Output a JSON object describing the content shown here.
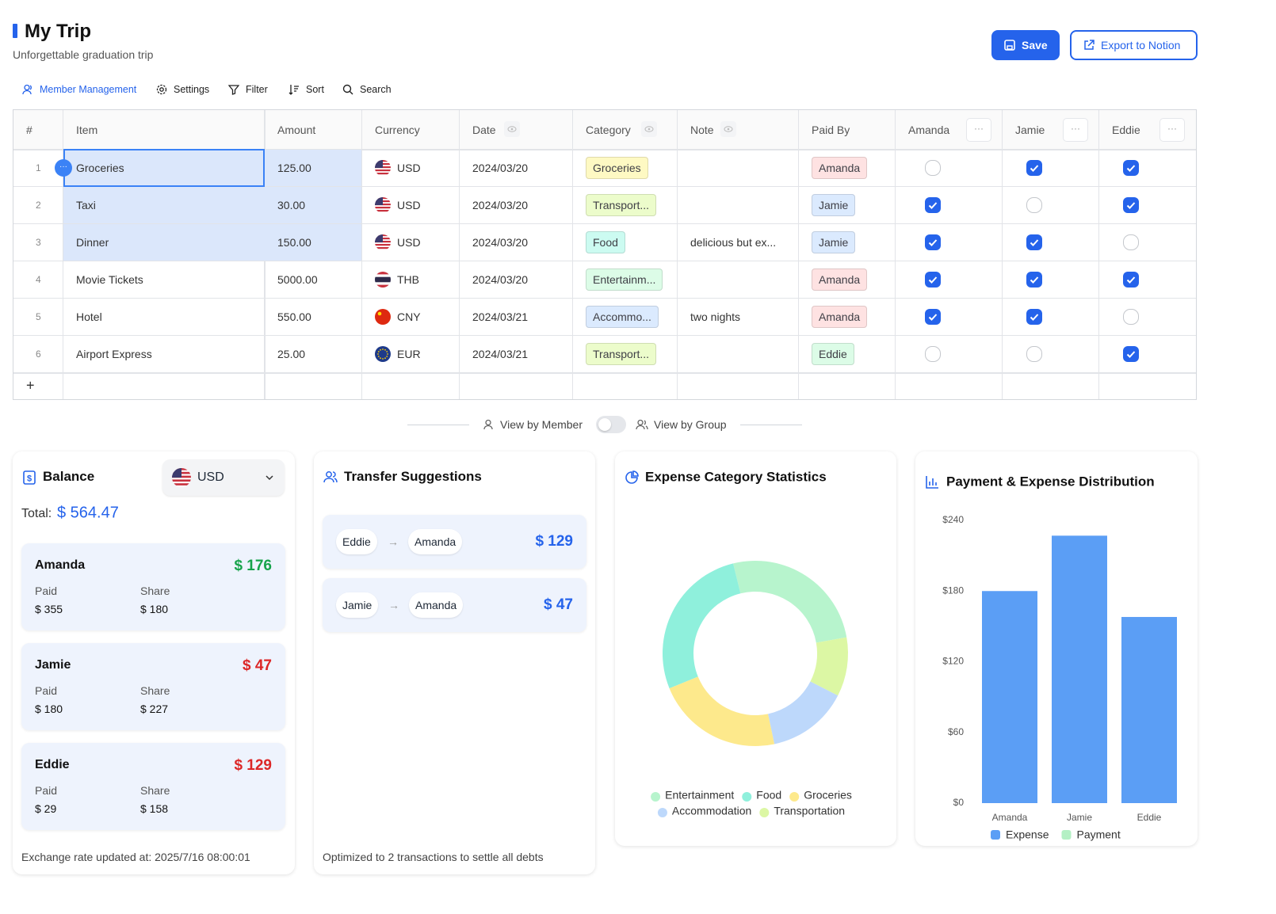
{
  "header": {
    "title": "My Trip",
    "subtitle": "Unforgettable graduation trip",
    "buttons": [
      "Save",
      "Export to Notion"
    ]
  },
  "toolbar": [
    "Member Management",
    "Settings",
    "Filter",
    "Sort",
    "Search"
  ],
  "table": {
    "columns": [
      "#",
      "Item",
      "Amount",
      "Currency",
      "Date",
      "Category",
      "Note",
      "Paid By",
      "Amanda",
      "Jamie",
      "Eddie"
    ],
    "rows": [
      {
        "no": "1",
        "item": "Groceries",
        "amount": "125.00",
        "currency": "USD",
        "flag": "us",
        "date": "2024/03/20",
        "category": "Groceries",
        "category_color": "#fef9c3",
        "note": null,
        "paid_by": "Amanda",
        "paid_by_color": "#fee2e2",
        "split": [
          false,
          true,
          true
        ],
        "selected": true
      },
      {
        "no": "2",
        "item": "Taxi",
        "amount": "30.00",
        "currency": "USD",
        "flag": "us",
        "date": "2024/03/20",
        "category": "Transport...",
        "category_color": "#ecfccb",
        "note": null,
        "paid_by": "Jamie",
        "paid_by_color": "#dbeafe",
        "split": [
          true,
          false,
          true
        ],
        "selected": true
      },
      {
        "no": "3",
        "item": "Dinner",
        "amount": "150.00",
        "currency": "USD",
        "flag": "us",
        "date": "2024/03/20",
        "category": "Food",
        "category_color": "#ccfbf1",
        "note": "delicious but ex...",
        "paid_by": "Jamie",
        "paid_by_color": "#dbeafe",
        "split": [
          true,
          true,
          false
        ],
        "selected": true
      },
      {
        "no": "4",
        "item": "Movie Tickets",
        "amount": "5000.00",
        "currency": "THB",
        "flag": "th",
        "date": "2024/03/20",
        "category": "Entertainm...",
        "category_color": "#dcfce7",
        "note": null,
        "paid_by": "Amanda",
        "paid_by_color": "#fee2e2",
        "split": [
          true,
          true,
          true
        ],
        "selected": false
      },
      {
        "no": "5",
        "item": "Hotel",
        "amount": "550.00",
        "currency": "CNY",
        "flag": "cn",
        "date": "2024/03/21",
        "category": "Accommo...",
        "category_color": "#dbeafe",
        "note": "two nights",
        "paid_by": "Amanda",
        "paid_by_color": "#fee2e2",
        "split": [
          true,
          true,
          false
        ],
        "selected": false
      },
      {
        "no": "6",
        "item": "Airport Express",
        "amount": "25.00",
        "currency": "EUR",
        "flag": "eu",
        "date": "2024/03/21",
        "category": "Transport...",
        "category_color": "#ecfccb",
        "note": null,
        "paid_by": "Eddie",
        "paid_by_color": "#dcfce7",
        "split": [
          false,
          false,
          true
        ],
        "selected": false
      }
    ]
  },
  "view_toggle": {
    "left": "View by Member",
    "right": "View by Group"
  },
  "balance": {
    "title": "Balance",
    "currency": "USD",
    "currency_flag": "us",
    "total_label": "Total:",
    "total": "$ 564.47",
    "paid_label": "Paid",
    "share_label": "Share",
    "members": [
      {
        "name": "Amanda",
        "net": "$ 176",
        "net_color": "#16a34a",
        "paid": "$ 355",
        "share": "$ 180"
      },
      {
        "name": "Jamie",
        "net": "$ 47",
        "net_color": "#dc2626",
        "paid": "$ 180",
        "share": "$ 227"
      },
      {
        "name": "Eddie",
        "net": "$ 129",
        "net_color": "#dc2626",
        "paid": "$ 29",
        "share": "$ 158"
      }
    ],
    "footer": "Exchange rate updated at: 2025/7/16 08:00:01"
  },
  "transfers": {
    "title": "Transfer Suggestions",
    "items": [
      {
        "from": "Eddie",
        "to": "Amanda",
        "amount": "$ 129"
      },
      {
        "from": "Jamie",
        "to": "Amanda",
        "amount": "$ 47"
      }
    ],
    "footer": "Optimized to 2 transactions to settle all debts"
  },
  "chart_data": [
    {
      "type": "pie",
      "title": "Expense Category Statistics",
      "donut": true,
      "categories": [
        "Entertainment",
        "Food",
        "Groceries",
        "Accommodation",
        "Transportation"
      ],
      "values": [
        147,
        154,
        125,
        80,
        58
      ],
      "colors": [
        "#b7f4cd",
        "#8ff0dc",
        "#fde98c",
        "#bdd8fb",
        "#dcf7a4"
      ]
    },
    {
      "type": "bar",
      "title": "Payment & Expense Distribution",
      "categories": [
        "Amanda",
        "Jamie",
        "Eddie"
      ],
      "series": [
        {
          "name": "Expense",
          "color": "#5b9ef5",
          "values": [
            180,
            227,
            158
          ]
        },
        {
          "name": "Payment",
          "color": "#b4f0c4",
          "values": [
            null,
            null,
            null
          ]
        }
      ],
      "ylim": [
        0,
        240
      ],
      "yticks": [
        {
          "value": 0,
          "label": "$0"
        },
        {
          "value": 60,
          "label": "$60"
        },
        {
          "value": 120,
          "label": "$120"
        },
        {
          "value": 180,
          "label": "$180"
        },
        {
          "value": 240,
          "label": "$240"
        }
      ]
    }
  ]
}
